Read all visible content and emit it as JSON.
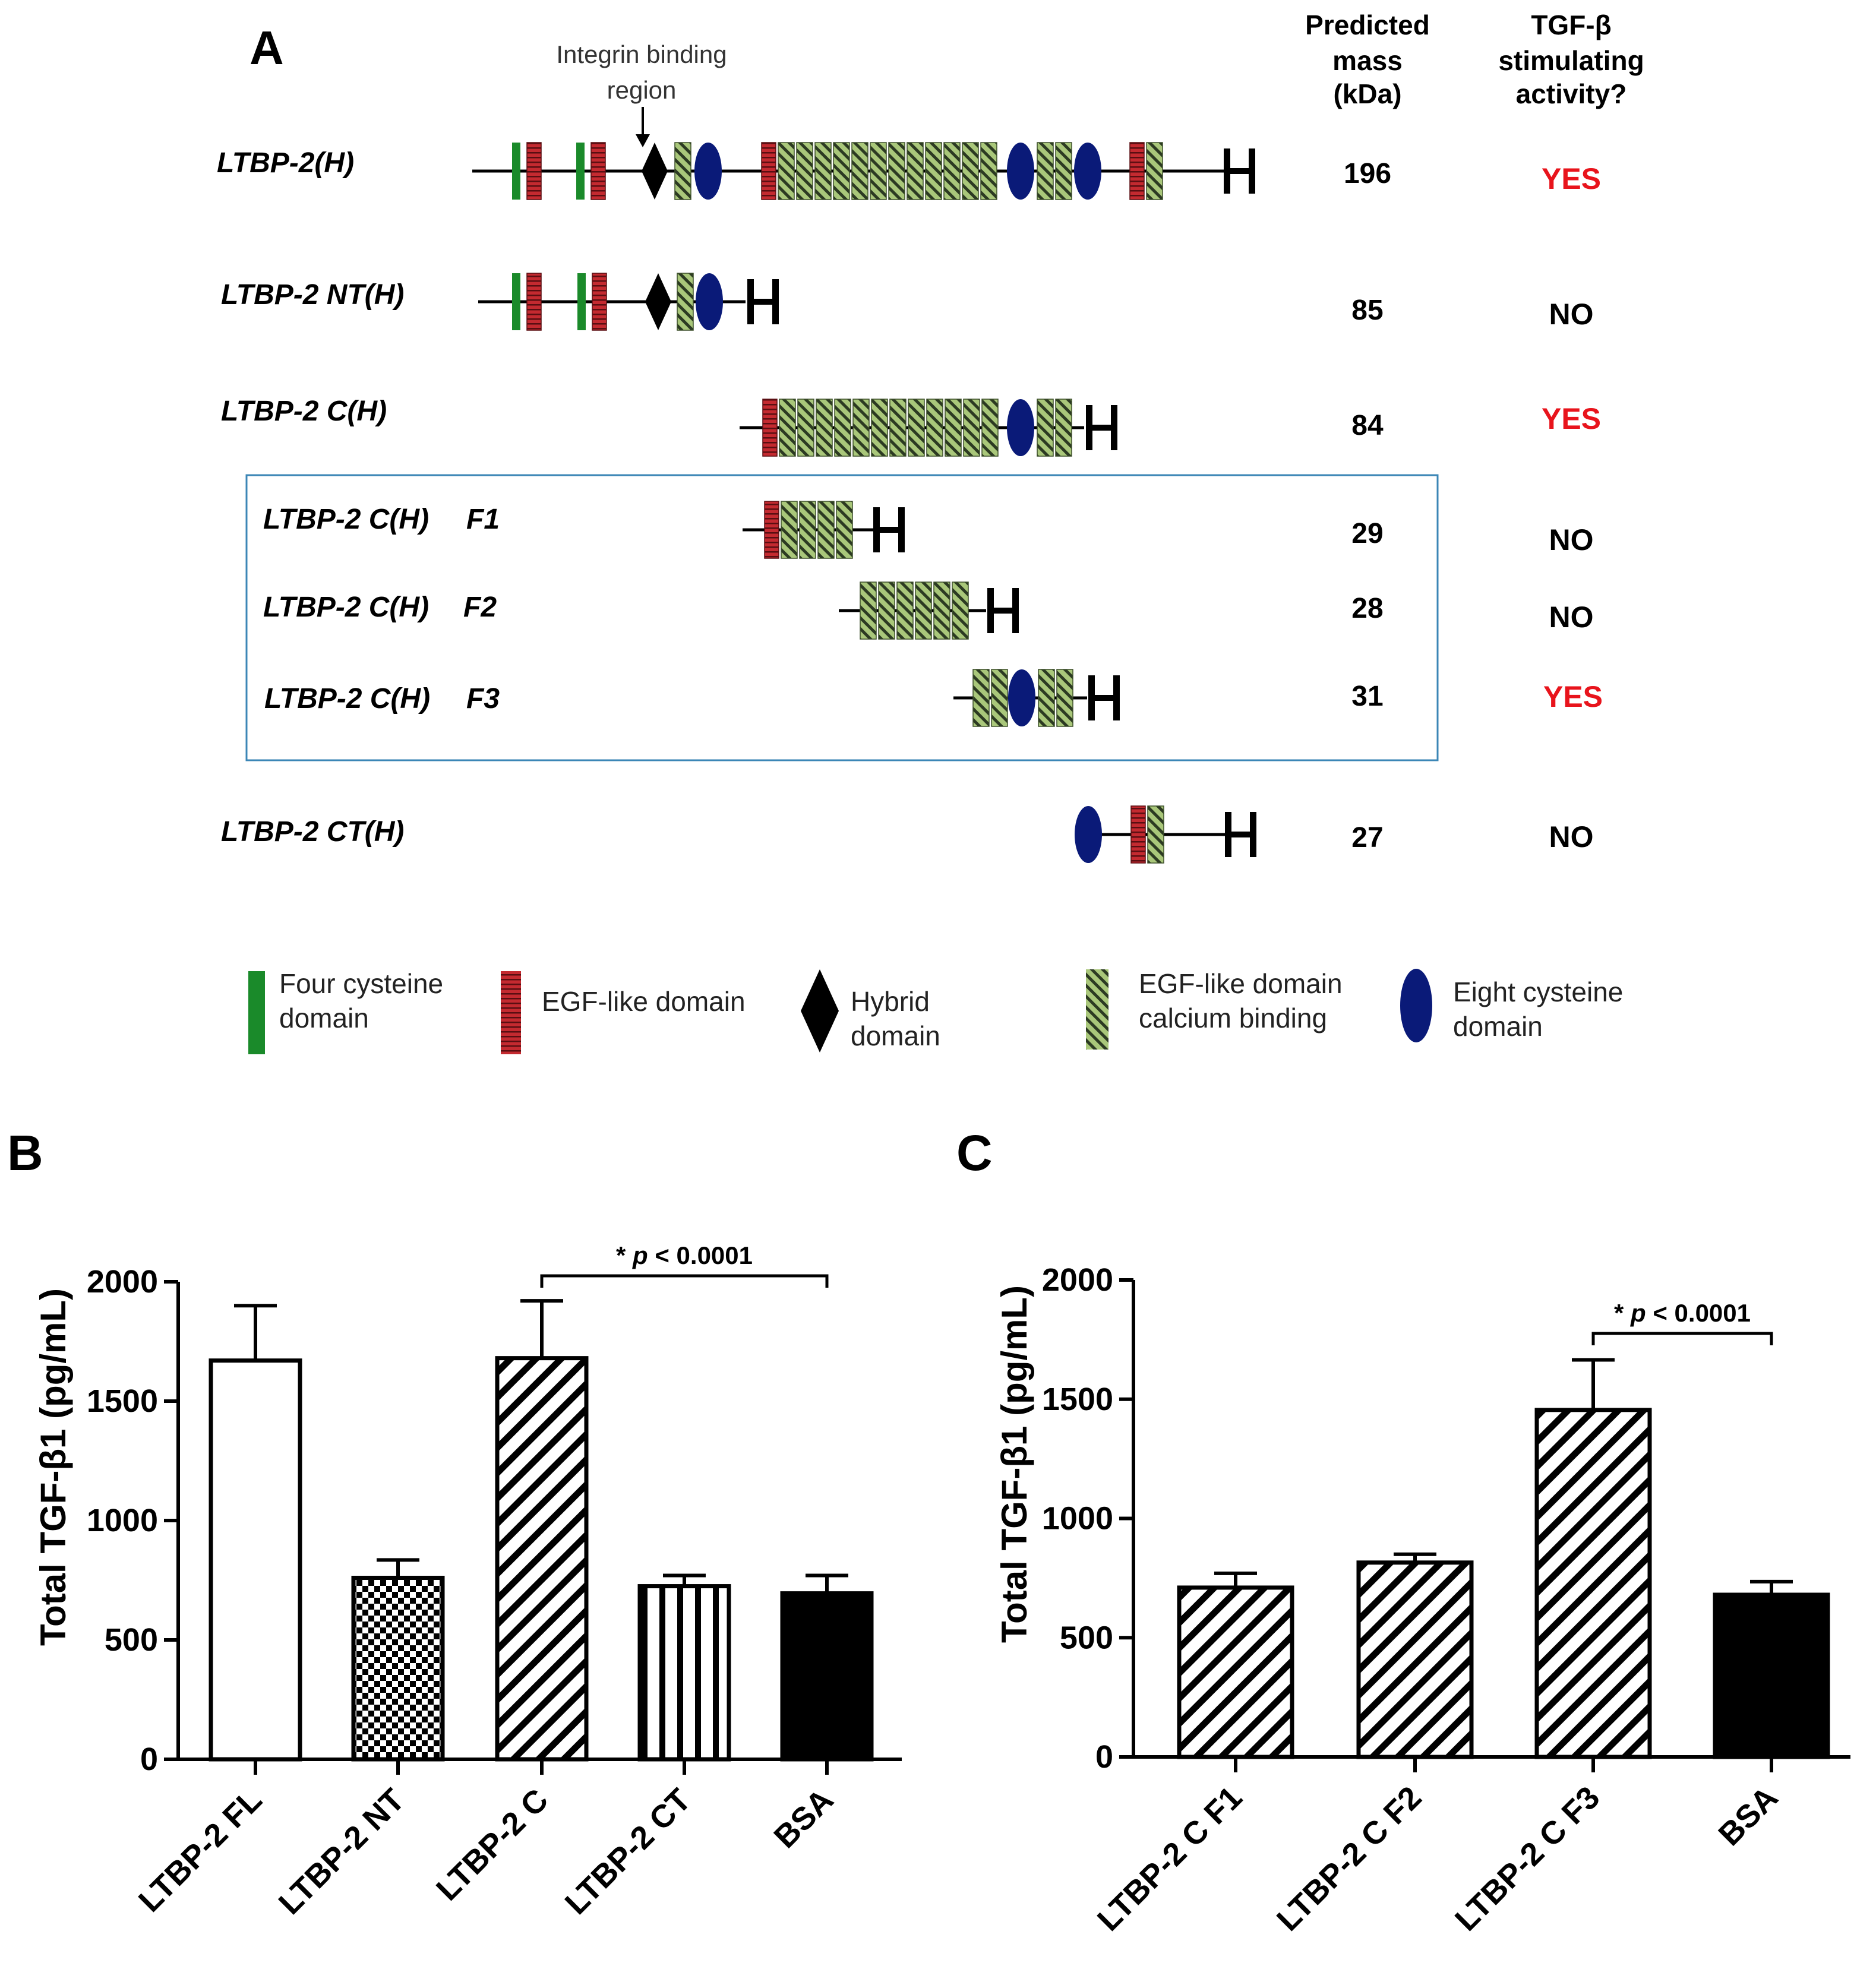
{
  "panel_a": {
    "label": "A",
    "integrin_annotation": [
      "Integrin binding",
      "region"
    ],
    "col_mass_header": [
      "Predicted",
      "mass",
      "(kDa)"
    ],
    "col_activity_header": [
      "TGF-β",
      "stimulating",
      "activity?"
    ],
    "constructs": [
      {
        "id": "fl",
        "name": "LTBP-2(H)",
        "mass": "196",
        "activity": "YES",
        "activity_color": "#e8141c"
      },
      {
        "id": "nt",
        "name": "LTBP-2 NT(H)",
        "mass": "85",
        "activity": "NO",
        "activity_color": "#000000"
      },
      {
        "id": "c",
        "name": "LTBP-2 C(H)",
        "mass": "84",
        "activity": "YES",
        "activity_color": "#e8141c"
      },
      {
        "id": "f1",
        "name": "LTBP-2 C(H)",
        "suffix": "F1",
        "mass": "29",
        "activity": "NO",
        "activity_color": "#000000"
      },
      {
        "id": "f2",
        "name": "LTBP-2 C(H)",
        "suffix": "F2",
        "mass": "28",
        "activity": "NO",
        "activity_color": "#000000"
      },
      {
        "id": "f3",
        "name": "LTBP-2 C(H)",
        "suffix": "F3",
        "mass": "31",
        "activity": "YES",
        "activity_color": "#e8141c"
      },
      {
        "id": "ct",
        "name": "LTBP-2 CT(H)",
        "mass": "27",
        "activity": "NO",
        "activity_color": "#000000"
      }
    ],
    "legend": [
      {
        "id": "four-cys",
        "text": [
          "Four cysteine",
          "domain"
        ],
        "icon": "green-bar-icon",
        "color": "#1a8a2a"
      },
      {
        "id": "egf",
        "text": [
          "EGF-like domain"
        ],
        "icon": "red-striped-bar-icon",
        "color": "#b0242c"
      },
      {
        "id": "hybrid",
        "text": [
          "Hybrid",
          "domain"
        ],
        "icon": "black-diamond-icon",
        "color": "#000000"
      },
      {
        "id": "egf-ca",
        "text": [
          "EGF-like domain",
          "calcium binding"
        ],
        "icon": "green-hatched-bar-icon",
        "color": "#9fbf6b"
      },
      {
        "id": "eight-cys",
        "text": [
          "Eight cysteine",
          "domain"
        ],
        "icon": "navy-ellipse-icon",
        "color": "#0a1a78"
      }
    ]
  },
  "chart_data": [
    {
      "panel": "B",
      "type": "bar",
      "ylabel": "Total TGF-β1 (pg/mL)",
      "xlabel": "",
      "ylim": [
        0,
        2000
      ],
      "yticks": [
        0,
        500,
        1000,
        1500,
        2000
      ],
      "categories": [
        "LTBP-2 FL",
        "LTBP-2 NT",
        "LTBP-2 C",
        "LTBP-2 CT",
        "BSA"
      ],
      "values": [
        1670,
        760,
        1680,
        725,
        695
      ],
      "errors": [
        230,
        75,
        240,
        45,
        75
      ],
      "patterns": [
        "open",
        "checker",
        "diagonal",
        "vertical",
        "solid"
      ],
      "significance": {
        "from": 2,
        "to": 4,
        "star": "*",
        "p_italic": "p",
        "text": "< 0.0001"
      }
    },
    {
      "panel": "C",
      "type": "bar",
      "ylabel": "Total TGF-β1 (pg/mL)",
      "xlabel": "",
      "ylim": [
        0,
        2000
      ],
      "yticks": [
        0,
        500,
        1000,
        1500,
        2000
      ],
      "categories": [
        "LTBP-2 C F1",
        "LTBP-2 C F2",
        "LTBP-2 C F3",
        "BSA"
      ],
      "values": [
        710,
        815,
        1455,
        680
      ],
      "errors": [
        60,
        35,
        210,
        55
      ],
      "patterns": [
        "diagonal",
        "diagonal",
        "diagonal",
        "solid"
      ],
      "significance": {
        "from": 2,
        "to": 3,
        "star": "*",
        "p_italic": "p",
        "text": "< 0.0001"
      }
    }
  ]
}
